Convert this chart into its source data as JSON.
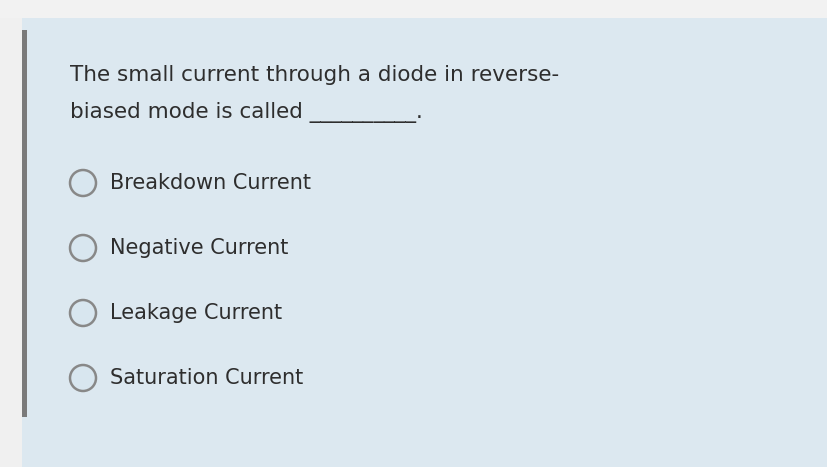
{
  "background_color": "#dce8f0",
  "top_bar_color": "#f0f0f0",
  "left_margin_color": "#f0f0f0",
  "left_bar_color": "#7a7a7a",
  "question_line1": "The small current through a diode in reverse-",
  "question_line2": "biased mode is called __________.",
  "options": [
    "Breakdown Current",
    "Negative Current",
    "Leakage Current",
    "Saturation Current"
  ],
  "text_color": "#2e2e2e",
  "circle_edge_color": "#888888",
  "circle_inner_color": "#d8e6ef",
  "question_fontsize": 15.5,
  "option_fontsize": 15,
  "fig_width": 8.28,
  "fig_height": 4.67,
  "dpi": 100
}
